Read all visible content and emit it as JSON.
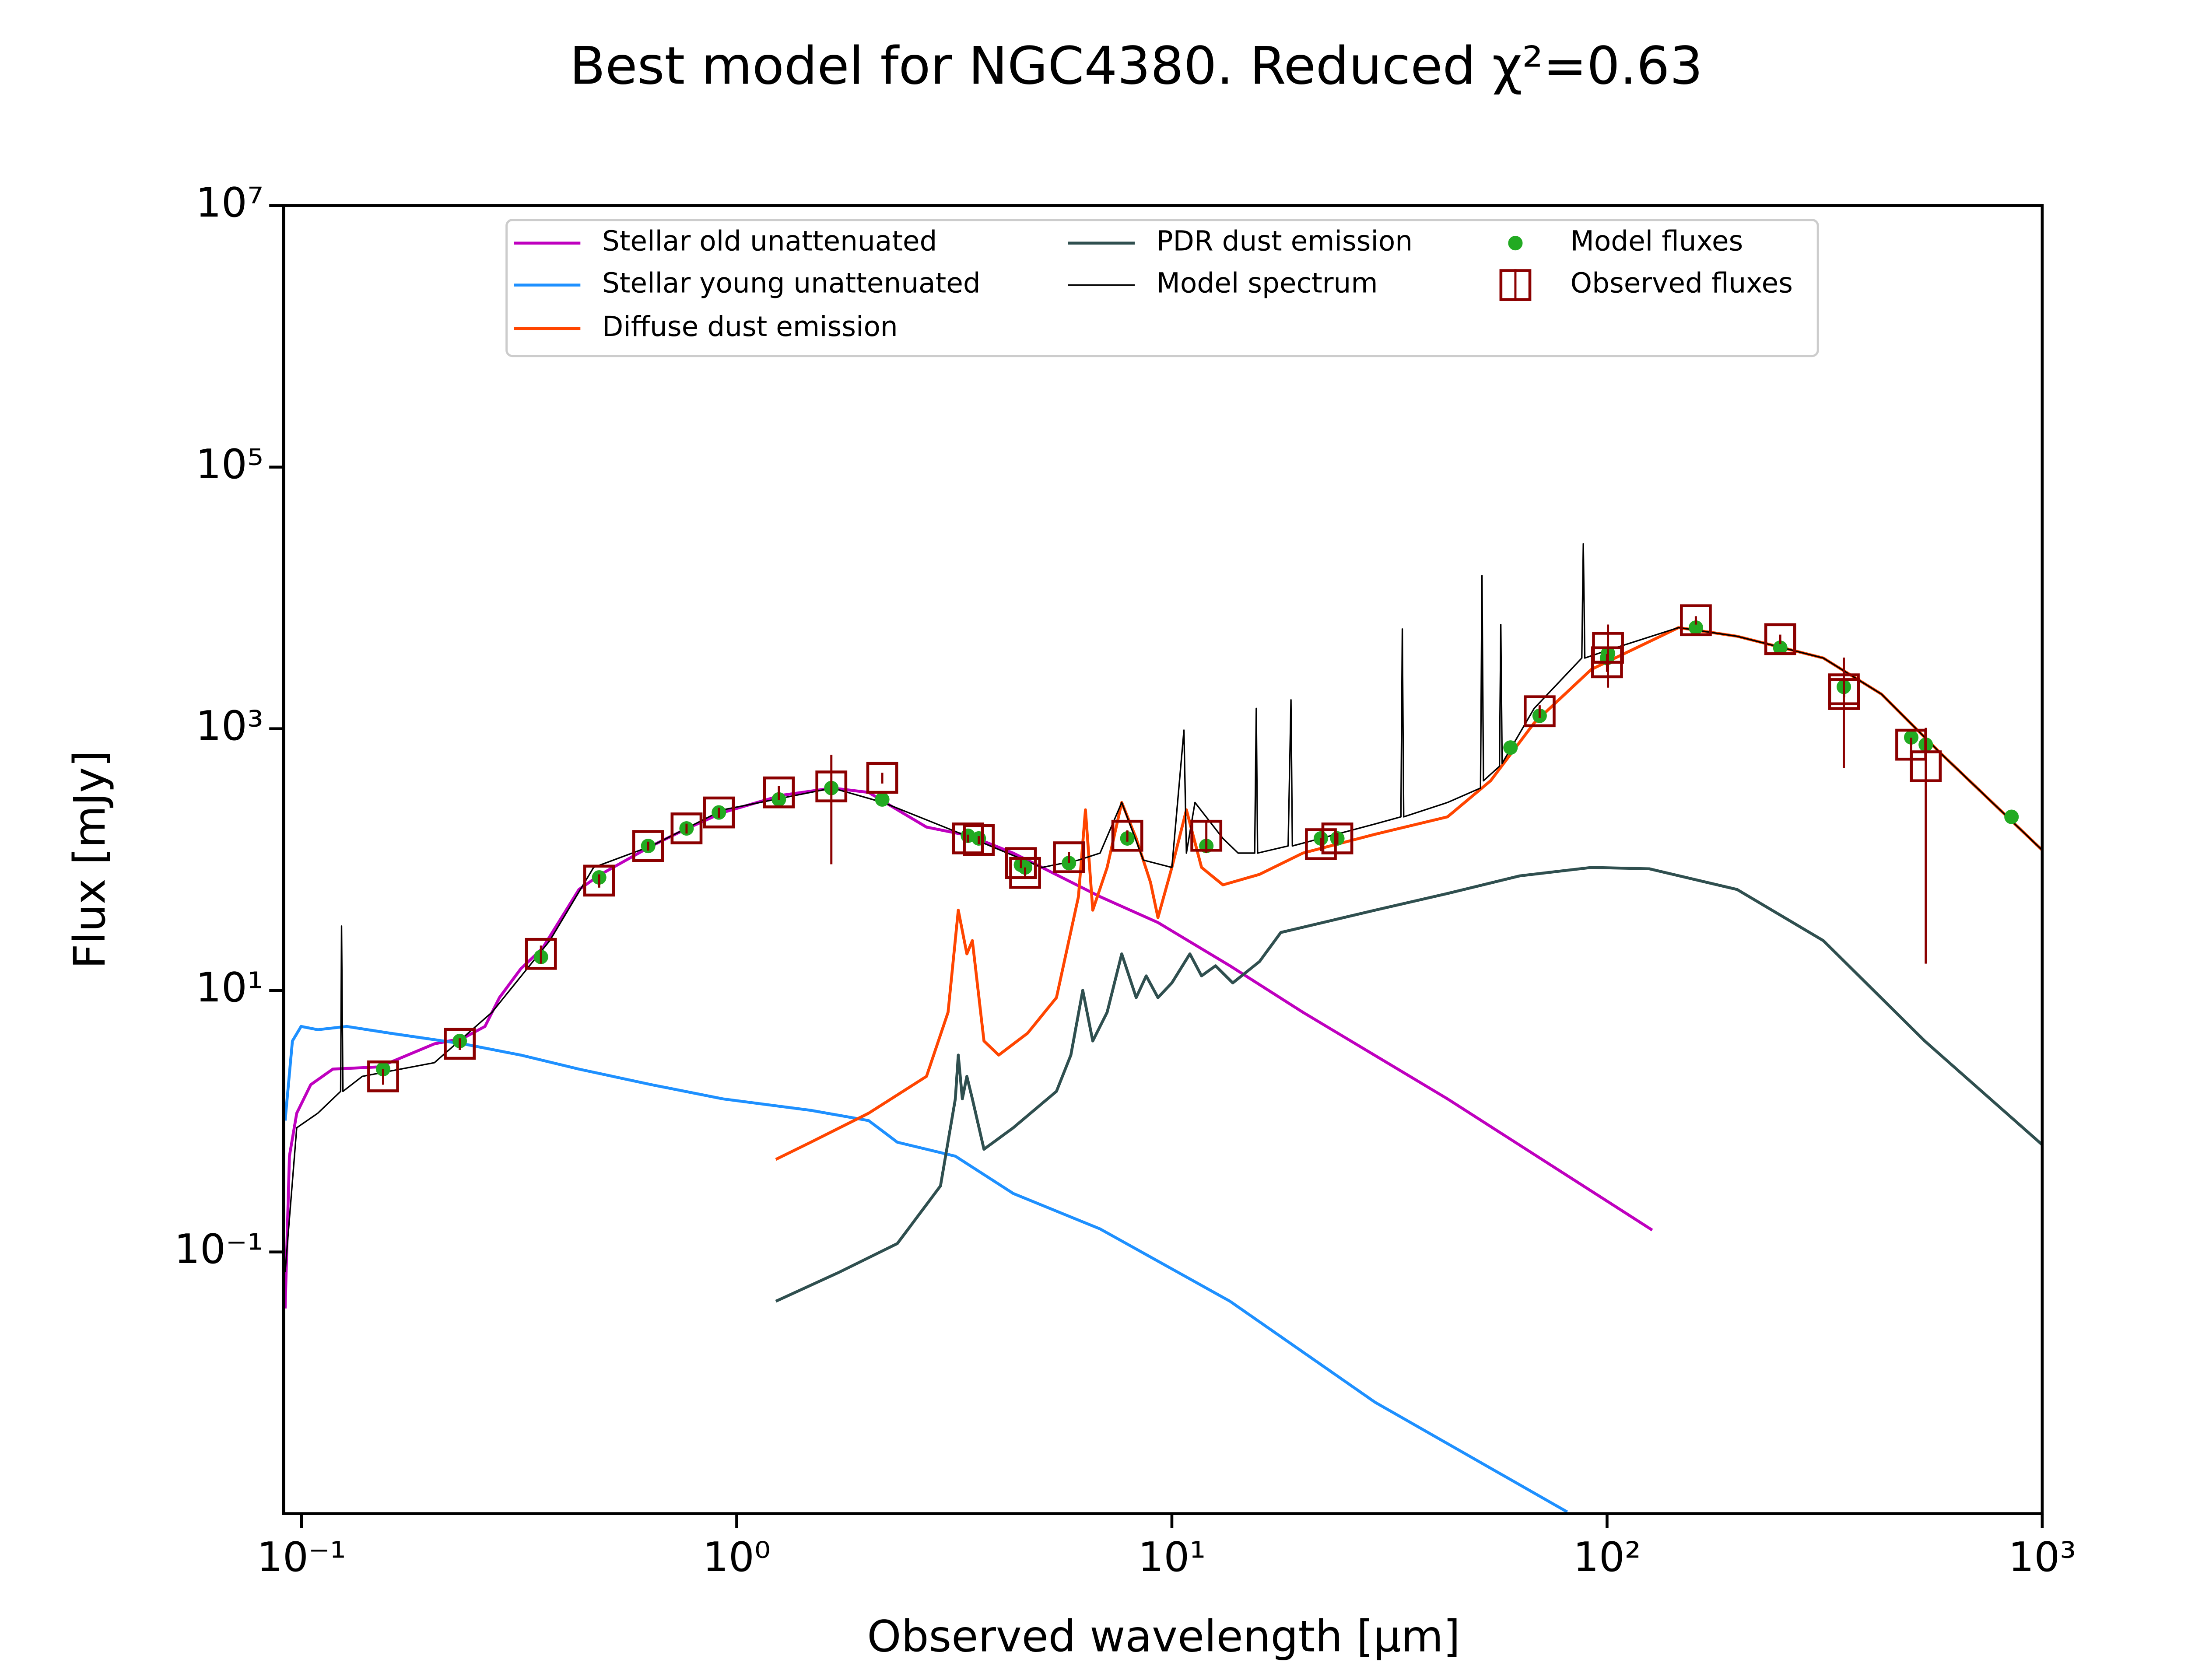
{
  "chart_data": {
    "type": "line",
    "title": "Best model for NGC4380. Reduced χ²=0.63",
    "x_label": "Observed wavelength [μm]",
    "y_label": "Flux [mJy]",
    "xscale": "log",
    "yscale": "log",
    "xlim": [
      0.091,
      1000
    ],
    "ylim": [
      0.001,
      10000000
    ],
    "xticks": [
      {
        "value": 0.1,
        "label": "10⁻¹"
      },
      {
        "value": 1,
        "label": "10⁰"
      },
      {
        "value": 10,
        "label": "10¹"
      },
      {
        "value": 100,
        "label": "10²"
      },
      {
        "value": 1000,
        "label": "10³"
      }
    ],
    "yticks": [
      {
        "value": 0.1,
        "label": "10⁻¹"
      },
      {
        "value": 10,
        "label": "10¹"
      },
      {
        "value": 1000,
        "label": "10³"
      },
      {
        "value": 100000,
        "label": "10⁵"
      },
      {
        "value": 10000000,
        "label": "10⁷"
      }
    ],
    "grid": false,
    "legend": {
      "loc": "upper center",
      "ncol": 3
    },
    "series": [
      {
        "name": "Stellar old unattenuated",
        "kind": "line",
        "color": "#bf00bf",
        "width": 2,
        "x": [
          0.0917,
          0.0938,
          0.0975,
          0.105,
          0.118,
          0.151,
          0.202,
          0.235,
          0.264,
          0.285,
          0.319,
          0.358,
          0.434,
          0.487,
          0.637,
          0.77,
          0.93,
          1.27,
          1.66,
          2.01,
          2.34,
          2.73,
          3.43,
          4.32,
          5.03,
          6.84,
          9.29,
          13.6,
          20,
          43,
          127
        ],
        "values": [
          0.037,
          0.54,
          1.15,
          1.9,
          2.5,
          2.6,
          3.9,
          4.3,
          5.3,
          8.8,
          14.6,
          21,
          59,
          77,
          127,
          173,
          229,
          310,
          352,
          326,
          240,
          177,
          152,
          112,
          87,
          52,
          33,
          15.4,
          6.8,
          1.48,
          0.147
        ]
      },
      {
        "name": "Stellar young unattenuated",
        "kind": "line",
        "color": "#1e90ff",
        "width": 2,
        "x": [
          0.0917,
          0.0953,
          0.0998,
          0.109,
          0.127,
          0.16,
          0.235,
          0.319,
          0.434,
          0.637,
          0.93,
          1.48,
          2.01,
          2.34,
          3.18,
          4.32,
          6.84,
          13.6,
          29.3,
          81
        ],
        "values": [
          1.01,
          4.1,
          5.3,
          5.0,
          5.3,
          4.7,
          3.9,
          3.2,
          2.5,
          1.9,
          1.48,
          1.21,
          1.01,
          0.69,
          0.54,
          0.28,
          0.15,
          0.042,
          0.0071,
          0.00103
        ]
      },
      {
        "name": "Diffuse dust emission",
        "kind": "line",
        "color": "#ff4500",
        "width": 2,
        "x": [
          1.23,
          1.48,
          2.01,
          2.73,
          3.06,
          3.23,
          3.38,
          3.48,
          3.7,
          4.0,
          4.66,
          5.43,
          6.1,
          6.33,
          6.58,
          7.1,
          7.67,
          8.28,
          8.93,
          9.29,
          10.0,
          10.8,
          11.7,
          13.1,
          15.9,
          20,
          29.3,
          43,
          54,
          68,
          92,
          146,
          199,
          314,
          427,
          580,
          1000
        ],
        "values": [
          0.51,
          0.69,
          1.15,
          2.2,
          6.8,
          41,
          19,
          24,
          4.1,
          3.2,
          4.7,
          8.8,
          52,
          240,
          41,
          87,
          273,
          145,
          67,
          36,
          87,
          240,
          87,
          64,
          77,
          112,
          156,
          212,
          400,
          1107,
          2840,
          5930,
          5090,
          3470,
          1840,
          665,
          118
        ]
      },
      {
        "name": "PDR dust emission",
        "kind": "line",
        "color": "#2f4f4f",
        "width": 2,
        "x": [
          1.23,
          1.72,
          2.34,
          2.94,
          3.18,
          3.23,
          3.3,
          3.38,
          3.48,
          3.7,
          4.32,
          5.43,
          5.86,
          6.24,
          6.58,
          7.1,
          7.67,
          8.28,
          8.73,
          9.29,
          10.0,
          11.0,
          11.7,
          12.6,
          13.8,
          15.9,
          17.8,
          29.3,
          43,
          63,
          92,
          125,
          199,
          314,
          537,
          1000
        ],
        "values": [
          0.042,
          0.07,
          0.116,
          0.32,
          1.48,
          3.2,
          1.48,
          2.2,
          1.48,
          0.61,
          0.89,
          1.69,
          3.2,
          10,
          4.1,
          6.8,
          19,
          8.8,
          12.9,
          8.8,
          11.4,
          19,
          12.9,
          15.4,
          11.4,
          16.6,
          27.7,
          41,
          55,
          75,
          87,
          85,
          59,
          24,
          4.1,
          0.66
        ]
      },
      {
        "name": "Model spectrum",
        "kind": "line",
        "color": "#000000",
        "width": 1,
        "x": [
          0.0917,
          0.0975,
          0.109,
          0.123,
          0.1236,
          0.1245,
          0.138,
          0.202,
          0.274,
          0.372,
          0.469,
          0.637,
          0.93,
          1.66,
          2.17,
          3.18,
          5.03,
          6.1,
          6.84,
          7.67,
          8.6,
          10.0,
          10.66,
          10.8,
          11.3,
          13.1,
          14.2,
          15.5,
          15.63,
          15.74,
          18.5,
          18.78,
          18.92,
          29.3,
          33.6,
          33.85,
          34.1,
          43,
          51.2,
          51.6,
          52.0,
          56.6,
          57.0,
          57.4,
          68,
          87.5,
          88.2,
          88.9,
          99.7,
          146,
          199,
          314,
          427,
          580,
          1000
        ],
        "values": [
          0.07,
          0.89,
          1.15,
          1.69,
          31,
          1.69,
          2.2,
          2.8,
          6.8,
          24,
          87,
          127,
          240,
          352,
          273,
          164,
          87,
          99,
          112,
          273,
          99,
          87,
          975,
          112,
          273,
          145,
          112,
          112,
          1430,
          112,
          127,
          1660,
          127,
          187,
          212,
          5780,
          212,
          273,
          352,
          14800,
          400,
          516,
          6250,
          543,
          1430,
          3470,
          25900,
          3470,
          3950,
          5930,
          5090,
          3470,
          1840,
          665,
          118
        ]
      },
      {
        "name": "Model fluxes",
        "kind": "scatter",
        "marker": "circle",
        "color": "#22aa22",
        "x": [
          0.154,
          0.231,
          0.355,
          0.483,
          0.626,
          0.767,
          0.91,
          1.25,
          1.65,
          2.16,
          3.4,
          3.6,
          4.5,
          4.6,
          5.8,
          7.9,
          12,
          22,
          24,
          60,
          70,
          100,
          100.5,
          160,
          250,
          350,
          500,
          540,
          850
        ],
        "values": [
          2.5,
          4.1,
          18,
          73,
          127,
          173,
          229,
          288,
          352,
          288,
          152,
          145,
          91,
          87,
          94,
          145,
          127,
          145,
          145,
          718,
          1256,
          3470,
          3760,
          5930,
          4160,
          2090,
          859,
          755,
          212
        ]
      },
      {
        "name": "Observed fluxes",
        "kind": "scatter",
        "marker": "square",
        "color": "#8b0000",
        "x": [
          0.154,
          0.231,
          0.355,
          0.483,
          0.626,
          0.767,
          0.91,
          1.25,
          1.65,
          2.16,
          3.4,
          3.6,
          4.5,
          4.6,
          5.8,
          7.9,
          12,
          22,
          24,
          70,
          100,
          100.5,
          160,
          250,
          350,
          350.5,
          500,
          540
        ],
        "values": [
          2.2,
          3.9,
          19,
          69,
          127,
          173,
          229,
          326,
          362,
          421,
          145,
          141,
          94,
          79,
          104,
          152,
          152,
          131,
          145,
          1360,
          3220,
          4160,
          6750,
          4840,
          2000,
          1840,
          755,
          516
        ],
        "errors": [
          0.3,
          0.4,
          3,
          8,
          10,
          15,
          20,
          40,
          270,
          40,
          10,
          10,
          8,
          8,
          10,
          15,
          40,
          15,
          15,
          150,
          500,
          2100,
          500,
          400,
          1500,
          100,
          100,
          500
        ]
      }
    ]
  }
}
